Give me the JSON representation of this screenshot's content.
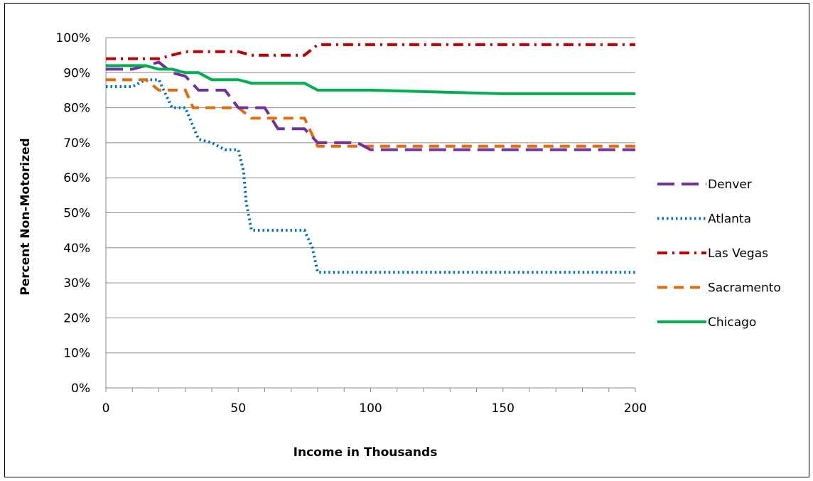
{
  "chart_data": {
    "type": "line",
    "title": "",
    "xlabel": "Income in Thousands",
    "ylabel": "Percent Non-Motorized",
    "xlim": [
      0,
      200
    ],
    "ylim": [
      0,
      1
    ],
    "x_ticks": [
      "0",
      "50",
      "100",
      "150",
      "200"
    ],
    "y_ticks": [
      "0%",
      "10%",
      "20%",
      "30%",
      "40%",
      "50%",
      "60%",
      "70%",
      "80%",
      "90%",
      "100%"
    ],
    "grid": true,
    "legend_position": "right",
    "series": [
      {
        "name": "Denver",
        "color": "#7030A0",
        "dash": "long-dash",
        "points": [
          [
            0,
            0.91
          ],
          [
            10,
            0.91
          ],
          [
            20,
            0.93
          ],
          [
            25,
            0.9
          ],
          [
            30,
            0.89
          ],
          [
            35,
            0.85
          ],
          [
            45,
            0.85
          ],
          [
            50,
            0.8
          ],
          [
            60,
            0.8
          ],
          [
            65,
            0.74
          ],
          [
            75,
            0.74
          ],
          [
            80,
            0.7
          ],
          [
            95,
            0.7
          ],
          [
            100,
            0.68
          ],
          [
            200,
            0.68
          ]
        ]
      },
      {
        "name": "Atlanta",
        "color": "#0070C0",
        "dash": "dotted",
        "points": [
          [
            0,
            0.86
          ],
          [
            10,
            0.86
          ],
          [
            15,
            0.88
          ],
          [
            20,
            0.88
          ],
          [
            25,
            0.8
          ],
          [
            30,
            0.8
          ],
          [
            35,
            0.71
          ],
          [
            40,
            0.7
          ],
          [
            45,
            0.68
          ],
          [
            50,
            0.68
          ],
          [
            52,
            0.62
          ],
          [
            53,
            0.53
          ],
          [
            55,
            0.45
          ],
          [
            65,
            0.45
          ],
          [
            75,
            0.45
          ],
          [
            78,
            0.4
          ],
          [
            80,
            0.33
          ],
          [
            100,
            0.33
          ],
          [
            200,
            0.33
          ]
        ]
      },
      {
        "name": "Las Vegas",
        "color": "#C00000",
        "dash": "dash-dot",
        "points": [
          [
            0,
            0.94
          ],
          [
            20,
            0.94
          ],
          [
            30,
            0.96
          ],
          [
            50,
            0.96
          ],
          [
            55,
            0.95
          ],
          [
            75,
            0.95
          ],
          [
            80,
            0.98
          ],
          [
            200,
            0.98
          ]
        ]
      },
      {
        "name": "Sacramento",
        "color": "#E46C0A",
        "dash": "dashed",
        "points": [
          [
            0,
            0.88
          ],
          [
            15,
            0.88
          ],
          [
            20,
            0.85
          ],
          [
            30,
            0.85
          ],
          [
            33,
            0.8
          ],
          [
            50,
            0.8
          ],
          [
            55,
            0.77
          ],
          [
            75,
            0.77
          ],
          [
            80,
            0.69
          ],
          [
            200,
            0.69
          ]
        ]
      },
      {
        "name": "Chicago",
        "color": "#00B050",
        "dash": "solid",
        "points": [
          [
            0,
            0.92
          ],
          [
            15,
            0.92
          ],
          [
            20,
            0.91
          ],
          [
            25,
            0.91
          ],
          [
            30,
            0.9
          ],
          [
            35,
            0.9
          ],
          [
            40,
            0.88
          ],
          [
            50,
            0.88
          ],
          [
            55,
            0.87
          ],
          [
            75,
            0.87
          ],
          [
            80,
            0.85
          ],
          [
            100,
            0.85
          ],
          [
            150,
            0.84
          ],
          [
            200,
            0.84
          ]
        ]
      }
    ]
  }
}
